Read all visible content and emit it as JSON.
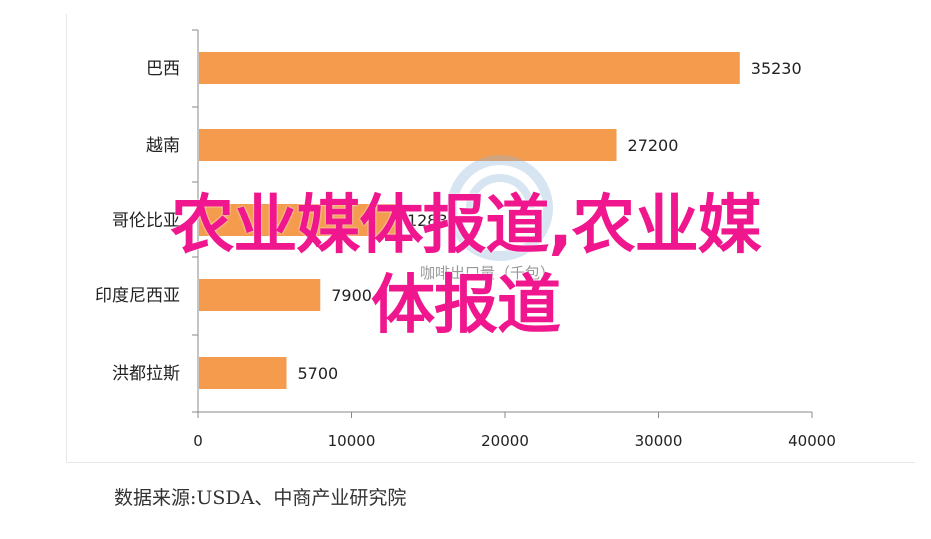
{
  "chart_data": {
    "type": "bar",
    "orientation": "horizontal",
    "categories": [
      "巴西",
      "越南",
      "哥伦比亚",
      "印度尼西亚",
      "洪都拉斯"
    ],
    "values": [
      35230,
      27200,
      12830,
      7900,
      5700
    ],
    "value_labels": [
      "35230",
      "27200",
      "12830",
      "7900",
      "5700"
    ],
    "xlim": [
      0,
      40000
    ],
    "xticks": [
      "0",
      "10000",
      "20000",
      "30000",
      "40000"
    ],
    "bar_color": "#f49b4e",
    "grid": false,
    "legend": "none"
  },
  "watermark_text": "咖啡出口量（千包）",
  "overlay": {
    "line1": "农业媒体报道,农业媒",
    "line2": "体报道",
    "color": "#f0168d"
  },
  "source": "数据来源:USDA、中商产业研究院"
}
